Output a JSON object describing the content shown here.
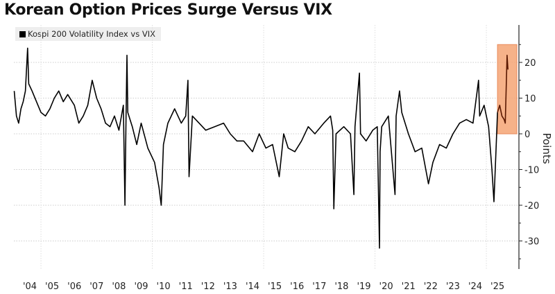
{
  "title": "Korean Option Prices Surge Versus VIX",
  "chart_data": {
    "type": "line",
    "title": "Korean Option Prices Surge Versus VIX",
    "ylabel": "Points",
    "xlabel": "",
    "ylim": [
      -38,
      30
    ],
    "yticks": [
      20,
      10,
      0,
      -10,
      -20,
      -30
    ],
    "ytick_labels": [
      "20",
      "10",
      "0",
      "-10",
      "-20",
      "-30"
    ],
    "xticks": [
      "'04",
      "'05",
      "'06",
      "'07",
      "'08",
      "'09",
      "'10",
      "'11",
      "'12",
      "'13",
      "'14",
      "'15",
      "'16",
      "'17",
      "'18",
      "'19",
      "'20",
      "'21",
      "'22",
      "'23",
      "'24",
      "'25"
    ],
    "grid": true,
    "legend_position": "top-left",
    "y_axis_position": "right",
    "series": [
      {
        "name": "Kospi 200 Volatility Index vs VIX",
        "color": "#000000",
        "x": [
          2003.8,
          2003.9,
          2004.0,
          2004.1,
          2004.2,
          2004.3,
          2004.4,
          2004.45,
          2004.6,
          2004.8,
          2005.0,
          2005.2,
          2005.4,
          2005.6,
          2005.8,
          2006.0,
          2006.2,
          2006.5,
          2006.7,
          2006.9,
          2007.1,
          2007.3,
          2007.5,
          2007.7,
          2007.9,
          2008.1,
          2008.3,
          2008.5,
          2008.7,
          2008.77,
          2008.82,
          2008.86,
          2008.9,
          2009.1,
          2009.3,
          2009.5,
          2009.8,
          2010.1,
          2010.3,
          2010.4,
          2010.5,
          2010.7,
          2011.0,
          2011.3,
          2011.5,
          2011.6,
          2011.65,
          2011.8,
          2012.1,
          2012.4,
          2012.8,
          2013.2,
          2013.5,
          2013.8,
          2014.1,
          2014.5,
          2014.8,
          2015.1,
          2015.4,
          2015.7,
          2015.9,
          2016.1,
          2016.4,
          2016.7,
          2017.0,
          2017.3,
          2017.7,
          2018.0,
          2018.1,
          2018.15,
          2018.25,
          2018.6,
          2018.9,
          2019.05,
          2019.1,
          2019.3,
          2019.35,
          2019.6,
          2019.9,
          2020.1,
          2020.2,
          2020.23,
          2020.3,
          2020.6,
          2020.9,
          2020.95,
          2021.1,
          2021.2,
          2021.5,
          2021.8,
          2022.1,
          2022.4,
          2022.6,
          2022.9,
          2023.2,
          2023.5,
          2023.8,
          2024.1,
          2024.4,
          2024.65,
          2024.7,
          2024.9,
          2025.1,
          2025.25,
          2025.34,
          2025.45,
          2025.5
        ],
        "y": [
          12,
          5,
          3,
          7,
          9,
          12,
          24,
          14,
          12,
          9,
          6,
          5,
          7,
          10,
          12,
          9,
          11,
          8,
          3,
          5,
          8,
          15,
          10,
          7,
          3,
          2,
          5,
          1,
          8,
          -20,
          5,
          22,
          6,
          2,
          -3,
          3,
          -4,
          -8,
          -15,
          -20,
          -3,
          3,
          7,
          3,
          5,
          15,
          -12,
          5,
          3,
          1,
          2,
          3,
          0,
          -2,
          -2,
          -5,
          0,
          -4,
          -3,
          -12,
          0,
          -4,
          -5,
          -2,
          2,
          0,
          3,
          5,
          1,
          -21,
          0,
          2,
          0,
          -17,
          2,
          17,
          0,
          -2,
          1,
          2,
          -32,
          -5,
          2,
          5,
          -17,
          5,
          12,
          6,
          0,
          -5,
          -4,
          -14,
          -8,
          -3,
          -4,
          0,
          3,
          4,
          3,
          15,
          5,
          8,
          2,
          -10,
          -19,
          -2,
          6
        ]
      },
      {
        "name": "highlight",
        "color": "#5a1800",
        "x": [
          2025.5,
          2025.6,
          2025.7,
          2025.8,
          2025.85,
          2025.93,
          2025.97
        ],
        "y": [
          6,
          8,
          5,
          4,
          3,
          22,
          18
        ]
      }
    ],
    "highlight_region": {
      "x": [
        2025.5,
        2026.37
      ],
      "y": [
        0,
        25
      ],
      "color": "#f5a574"
    }
  }
}
